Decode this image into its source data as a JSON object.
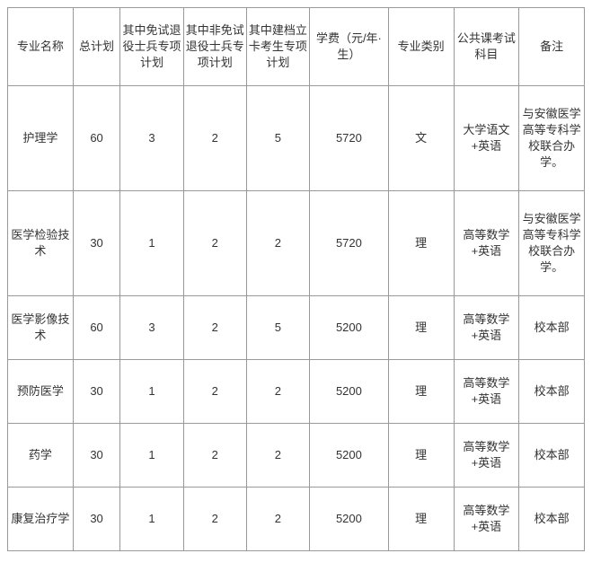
{
  "columns": [
    "专业名称",
    "总计划",
    "其中免试退役士兵专项计划",
    "其中非免试退役士兵专项计划",
    "其中建档立卡考生专项计划",
    "学费（元/年·生）",
    "专业类别",
    "公共课考试科目",
    "备注"
  ],
  "rows": [
    {
      "height": "tall",
      "cells": [
        "护理学",
        "60",
        "3",
        "2",
        "5",
        "5720",
        "文",
        "大学语文+英语",
        "与安徽医学高等专科学校联合办学。"
      ]
    },
    {
      "height": "tall",
      "cells": [
        "医学检验技术",
        "30",
        "1",
        "2",
        "2",
        "5720",
        "理",
        "高等数学+英语",
        "与安徽医学高等专科学校联合办学。"
      ]
    },
    {
      "height": "short",
      "cells": [
        "医学影像技术",
        "60",
        "3",
        "2",
        "5",
        "5200",
        "理",
        "高等数学+英语",
        "校本部"
      ]
    },
    {
      "height": "short",
      "cells": [
        "预防医学",
        "30",
        "1",
        "2",
        "2",
        "5200",
        "理",
        "高等数学+英语",
        "校本部"
      ]
    },
    {
      "height": "short",
      "cells": [
        "药学",
        "30",
        "1",
        "2",
        "2",
        "5200",
        "理",
        "高等数学+英语",
        "校本部"
      ]
    },
    {
      "height": "short",
      "cells": [
        "康复治疗学",
        "30",
        "1",
        "2",
        "2",
        "5200",
        "理",
        "高等数学+英语",
        "校本部"
      ]
    }
  ],
  "colClasses": [
    "col0",
    "col1",
    "col2",
    "col3",
    "col4",
    "col5",
    "col6",
    "col7",
    "col8"
  ]
}
